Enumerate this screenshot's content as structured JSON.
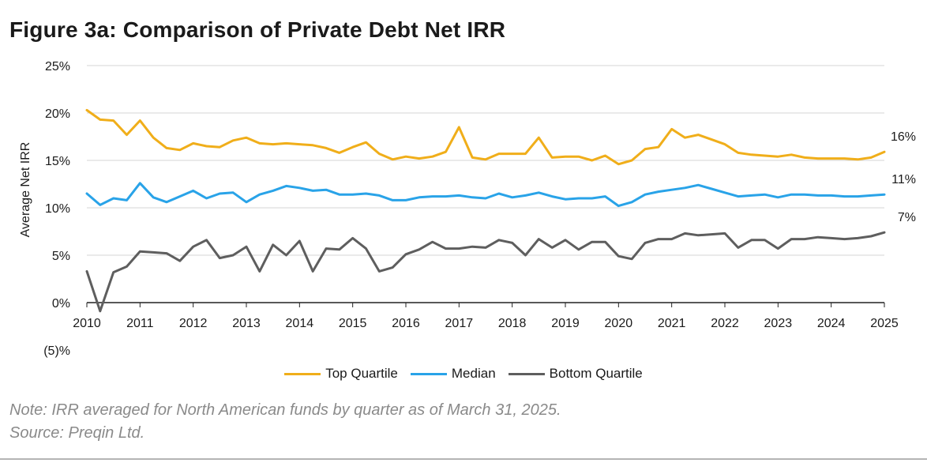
{
  "title": "Figure 3a: Comparison of Private Debt Net IRR",
  "note": "Note: IRR averaged for North American funds by quarter as of March 31, 2025.",
  "source": "Source: Preqin Ltd.",
  "colors": {
    "top_quartile": "#F0AE1A",
    "median": "#29A3E8",
    "bottom_quartile": "#5E5E5E",
    "grid": "#d4d4d4",
    "axis": "#222222"
  },
  "chart_data": {
    "type": "line",
    "title": "Figure 3a: Comparison of Private Debt Net IRR",
    "xlabel": "",
    "ylabel": "Average Net IRR",
    "xlim": [
      2010,
      2025
    ],
    "ylim": [
      -5,
      25
    ],
    "grid": true,
    "legend": "bottom-center",
    "x_ticks": [
      {
        "value": 2010,
        "label": "2010"
      },
      {
        "value": 2011,
        "label": "2011"
      },
      {
        "value": 2012,
        "label": "2012"
      },
      {
        "value": 2013,
        "label": "2013"
      },
      {
        "value": 2014,
        "label": "2014"
      },
      {
        "value": 2015,
        "label": "2015"
      },
      {
        "value": 2016,
        "label": "2016"
      },
      {
        "value": 2017,
        "label": "2017"
      },
      {
        "value": 2018,
        "label": "2018"
      },
      {
        "value": 2019,
        "label": "2019"
      },
      {
        "value": 2020,
        "label": "2020"
      },
      {
        "value": 2021,
        "label": "2021"
      },
      {
        "value": 2022,
        "label": "2022"
      },
      {
        "value": 2023,
        "label": "2023"
      },
      {
        "value": 2024,
        "label": "2024"
      },
      {
        "value": 2025,
        "label": "2025"
      }
    ],
    "y_ticks": [
      {
        "value": 25,
        "label": "25%"
      },
      {
        "value": 20,
        "label": "20%"
      },
      {
        "value": 15,
        "label": "15%"
      },
      {
        "value": 10,
        "label": "10%"
      },
      {
        "value": 5,
        "label": "5%"
      },
      {
        "value": 0,
        "label": "0%"
      },
      {
        "value": -5,
        "label": "(5)%"
      }
    ],
    "series": [
      {
        "name": "Top Quartile",
        "color": "#F0AE1A",
        "end_label": "16%",
        "x": [
          2010.0,
          2010.25,
          2010.5,
          2010.75,
          2011.0,
          2011.25,
          2011.5,
          2011.75,
          2012.0,
          2012.25,
          2012.5,
          2012.75,
          2013.0,
          2013.25,
          2013.5,
          2013.75,
          2014.0,
          2014.25,
          2014.5,
          2014.75,
          2015.0,
          2015.25,
          2015.5,
          2015.75,
          2016.0,
          2016.25,
          2016.5,
          2016.75,
          2017.0,
          2017.25,
          2017.5,
          2017.75,
          2018.0,
          2018.25,
          2018.5,
          2018.75,
          2019.0,
          2019.25,
          2019.5,
          2019.75,
          2020.0,
          2020.25,
          2020.5,
          2020.75,
          2021.0,
          2021.25,
          2021.5,
          2021.75,
          2022.0,
          2022.25,
          2022.5,
          2022.75,
          2023.0,
          2023.25,
          2023.5,
          2023.75,
          2024.0,
          2024.25,
          2024.5,
          2024.75,
          2025.0
        ],
        "values": [
          20.3,
          19.3,
          19.2,
          17.7,
          19.2,
          17.4,
          16.3,
          16.1,
          16.8,
          16.5,
          16.4,
          17.1,
          17.4,
          16.8,
          16.7,
          16.8,
          16.7,
          16.6,
          16.3,
          15.8,
          16.4,
          16.9,
          15.7,
          15.1,
          15.4,
          15.2,
          15.4,
          15.9,
          18.5,
          15.3,
          15.1,
          15.7,
          15.7,
          15.7,
          17.4,
          15.3,
          15.4,
          15.4,
          15.0,
          15.5,
          14.6,
          15.0,
          16.2,
          16.4,
          18.3,
          17.4,
          17.7,
          17.2,
          16.7,
          15.8,
          15.6,
          15.5,
          15.4,
          15.6,
          15.3,
          15.2,
          15.2,
          15.2,
          15.1,
          15.3,
          15.9
        ]
      },
      {
        "name": "Median",
        "color": "#29A3E8",
        "end_label": "11%",
        "x": [
          2010.0,
          2010.25,
          2010.5,
          2010.75,
          2011.0,
          2011.25,
          2011.5,
          2011.75,
          2012.0,
          2012.25,
          2012.5,
          2012.75,
          2013.0,
          2013.25,
          2013.5,
          2013.75,
          2014.0,
          2014.25,
          2014.5,
          2014.75,
          2015.0,
          2015.25,
          2015.5,
          2015.75,
          2016.0,
          2016.25,
          2016.5,
          2016.75,
          2017.0,
          2017.25,
          2017.5,
          2017.75,
          2018.0,
          2018.25,
          2018.5,
          2018.75,
          2019.0,
          2019.25,
          2019.5,
          2019.75,
          2020.0,
          2020.25,
          2020.5,
          2020.75,
          2021.0,
          2021.25,
          2021.5,
          2021.75,
          2022.0,
          2022.25,
          2022.5,
          2022.75,
          2023.0,
          2023.25,
          2023.5,
          2023.75,
          2024.0,
          2024.25,
          2024.5,
          2024.75,
          2025.0
        ],
        "values": [
          11.5,
          10.3,
          11.0,
          10.8,
          12.6,
          11.1,
          10.6,
          11.2,
          11.8,
          11.0,
          11.5,
          11.6,
          10.6,
          11.4,
          11.8,
          12.3,
          12.1,
          11.8,
          11.9,
          11.4,
          11.4,
          11.5,
          11.3,
          10.8,
          10.8,
          11.1,
          11.2,
          11.2,
          11.3,
          11.1,
          11.0,
          11.5,
          11.1,
          11.3,
          11.6,
          11.2,
          10.9,
          11.0,
          11.0,
          11.2,
          10.2,
          10.6,
          11.4,
          11.7,
          11.9,
          12.1,
          12.4,
          12.0,
          11.6,
          11.2,
          11.3,
          11.4,
          11.1,
          11.4,
          11.4,
          11.3,
          11.3,
          11.2,
          11.2,
          11.3,
          11.4
        ]
      },
      {
        "name": "Bottom Quartile",
        "color": "#5E5E5E",
        "end_label": "7%",
        "x": [
          2010.0,
          2010.25,
          2010.5,
          2010.75,
          2011.0,
          2011.25,
          2011.5,
          2011.75,
          2012.0,
          2012.25,
          2012.5,
          2012.75,
          2013.0,
          2013.25,
          2013.5,
          2013.75,
          2014.0,
          2014.25,
          2014.5,
          2014.75,
          2015.0,
          2015.25,
          2015.5,
          2015.75,
          2016.0,
          2016.25,
          2016.5,
          2016.75,
          2017.0,
          2017.25,
          2017.5,
          2017.75,
          2018.0,
          2018.25,
          2018.5,
          2018.75,
          2019.0,
          2019.25,
          2019.5,
          2019.75,
          2020.0,
          2020.25,
          2020.5,
          2020.75,
          2021.0,
          2021.25,
          2021.5,
          2021.75,
          2022.0,
          2022.25,
          2022.5,
          2022.75,
          2023.0,
          2023.25,
          2023.5,
          2023.75,
          2024.0,
          2024.25,
          2024.5,
          2024.75,
          2025.0
        ],
        "values": [
          3.3,
          -0.9,
          3.2,
          3.8,
          5.4,
          5.3,
          5.2,
          4.4,
          5.9,
          6.6,
          4.7,
          5.0,
          5.9,
          3.3,
          6.1,
          5.0,
          6.5,
          3.3,
          5.7,
          5.6,
          6.8,
          5.7,
          3.3,
          3.7,
          5.1,
          5.6,
          6.4,
          5.7,
          5.7,
          5.9,
          5.8,
          6.6,
          6.3,
          5.0,
          6.7,
          5.8,
          6.6,
          5.6,
          6.4,
          6.4,
          4.9,
          4.6,
          6.3,
          6.7,
          6.7,
          7.3,
          7.1,
          7.2,
          7.3,
          5.8,
          6.6,
          6.6,
          5.7,
          6.7,
          6.7,
          6.9,
          6.8,
          6.7,
          6.8,
          7.0,
          7.4
        ]
      }
    ]
  }
}
